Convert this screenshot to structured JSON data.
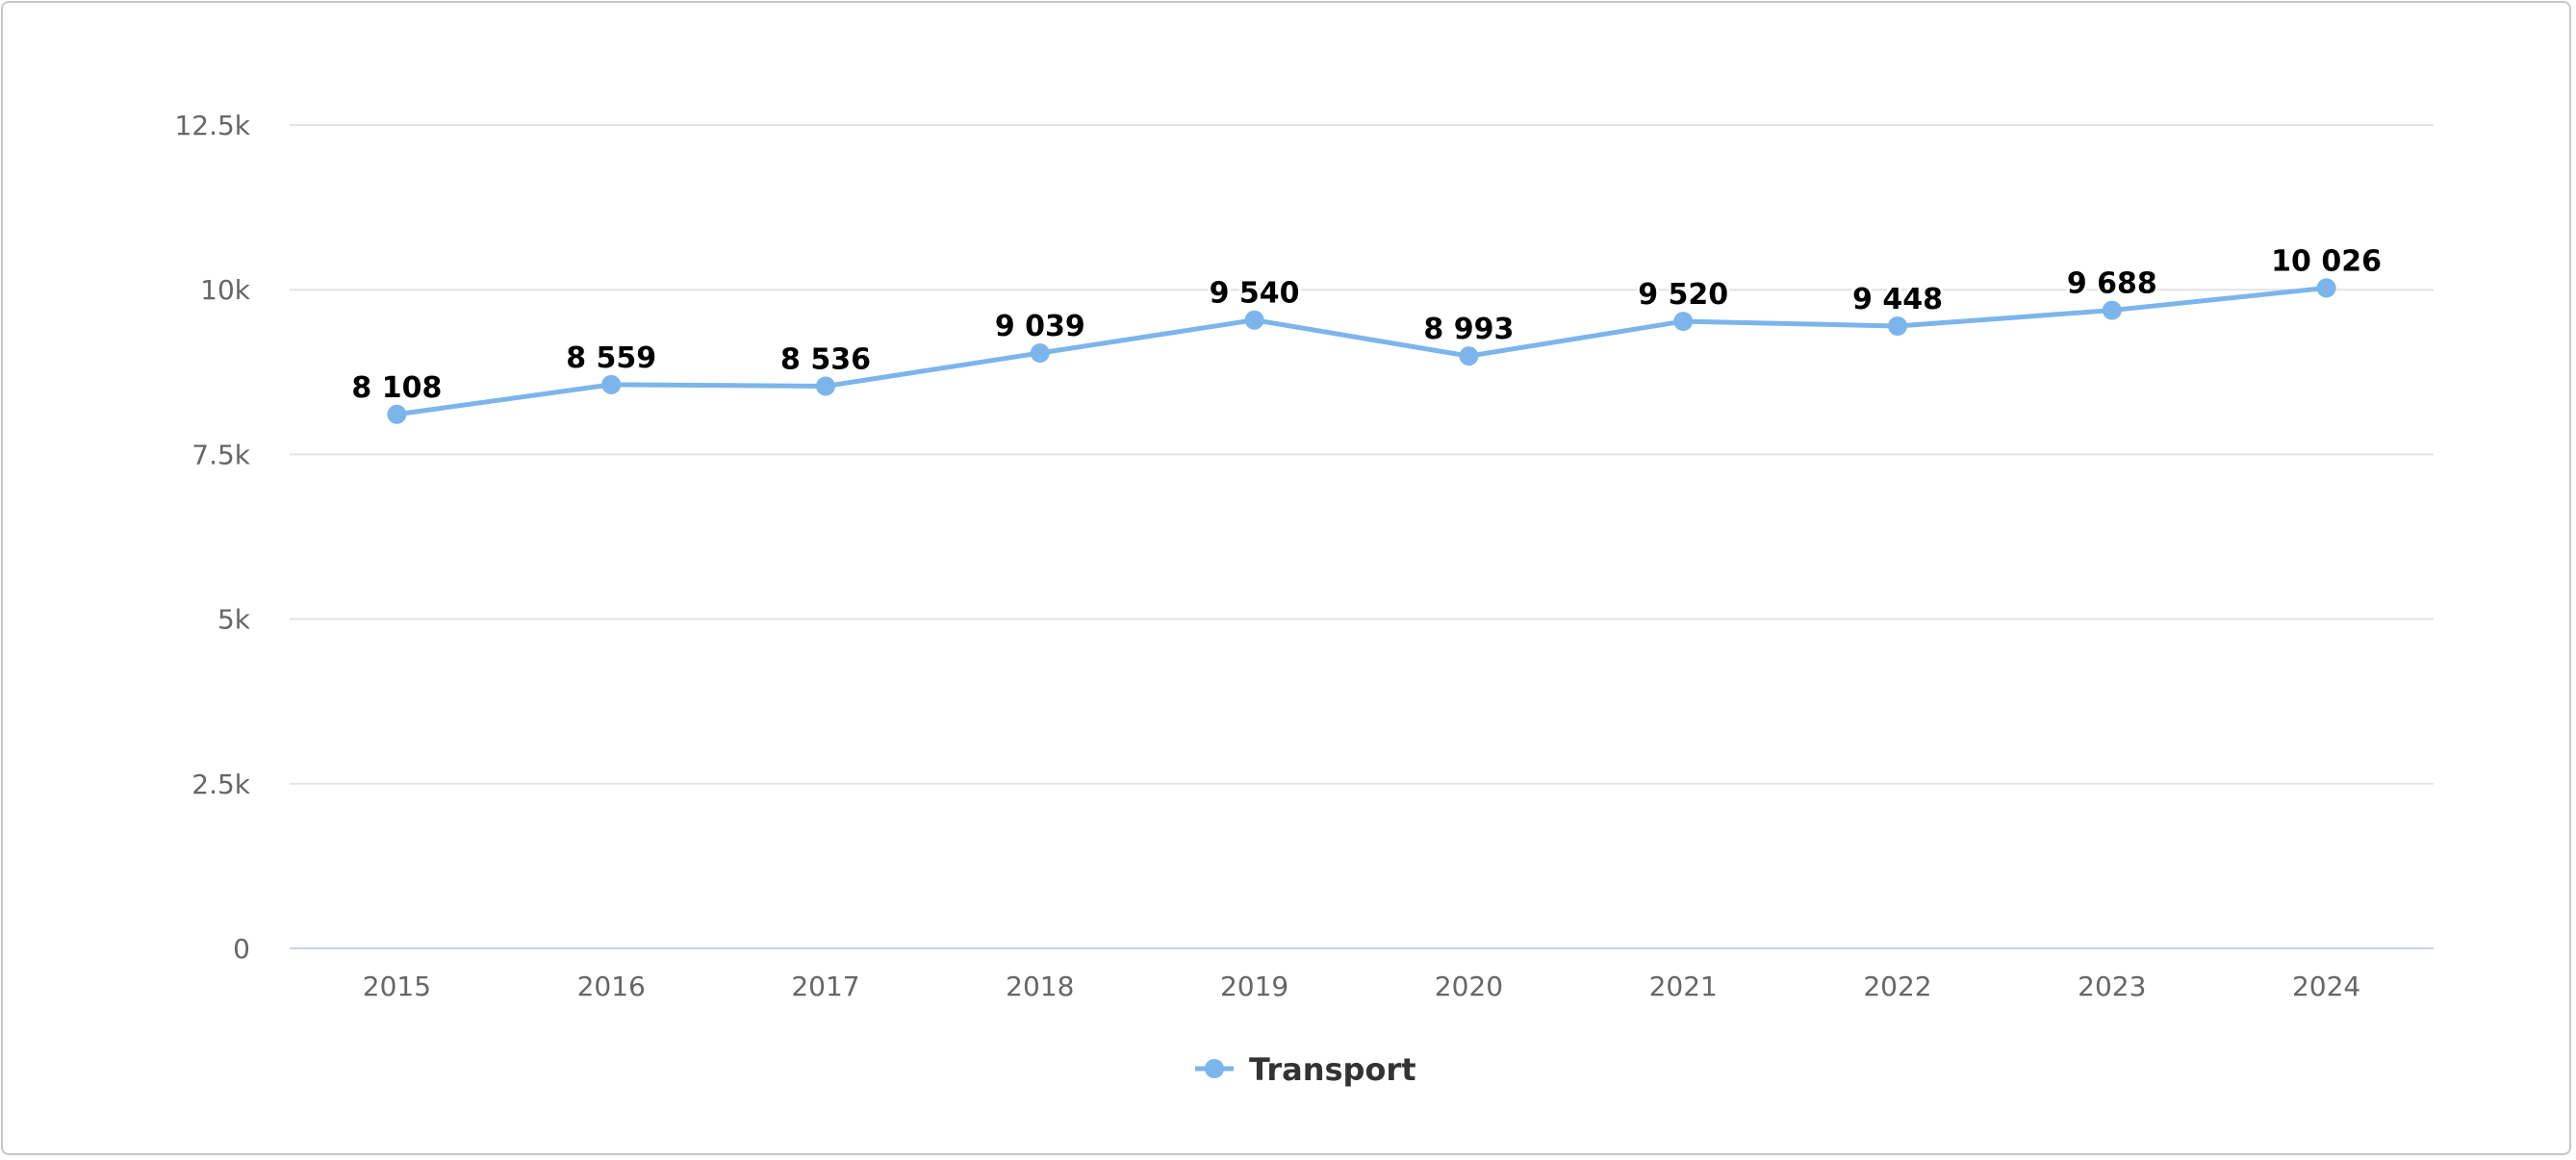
{
  "chart_data": {
    "type": "line",
    "title": "",
    "xlabel": "",
    "ylabel": "",
    "categories": [
      "2015",
      "2016",
      "2017",
      "2018",
      "2019",
      "2020",
      "2021",
      "2022",
      "2023",
      "2024"
    ],
    "ylim": [
      0,
      12500
    ],
    "yticks": [
      {
        "value": 0,
        "label": "0"
      },
      {
        "value": 2500,
        "label": "2.5k"
      },
      {
        "value": 5000,
        "label": "5k"
      },
      {
        "value": 7500,
        "label": "7.5k"
      },
      {
        "value": 10000,
        "label": "10k"
      },
      {
        "value": 12500,
        "label": "12.5k"
      }
    ],
    "grid": true,
    "legend_position": "bottom-center",
    "series": [
      {
        "name": "Transport",
        "color": "#7cb5ec",
        "values": [
          8108,
          8559,
          8536,
          9039,
          9540,
          8993,
          9520,
          9448,
          9688,
          10026
        ],
        "labels": [
          "8 108",
          "8 559",
          "8 536",
          "9 039",
          "9 540",
          "8 993",
          "9 520",
          "9 448",
          "9 688",
          "10 026"
        ]
      }
    ]
  }
}
